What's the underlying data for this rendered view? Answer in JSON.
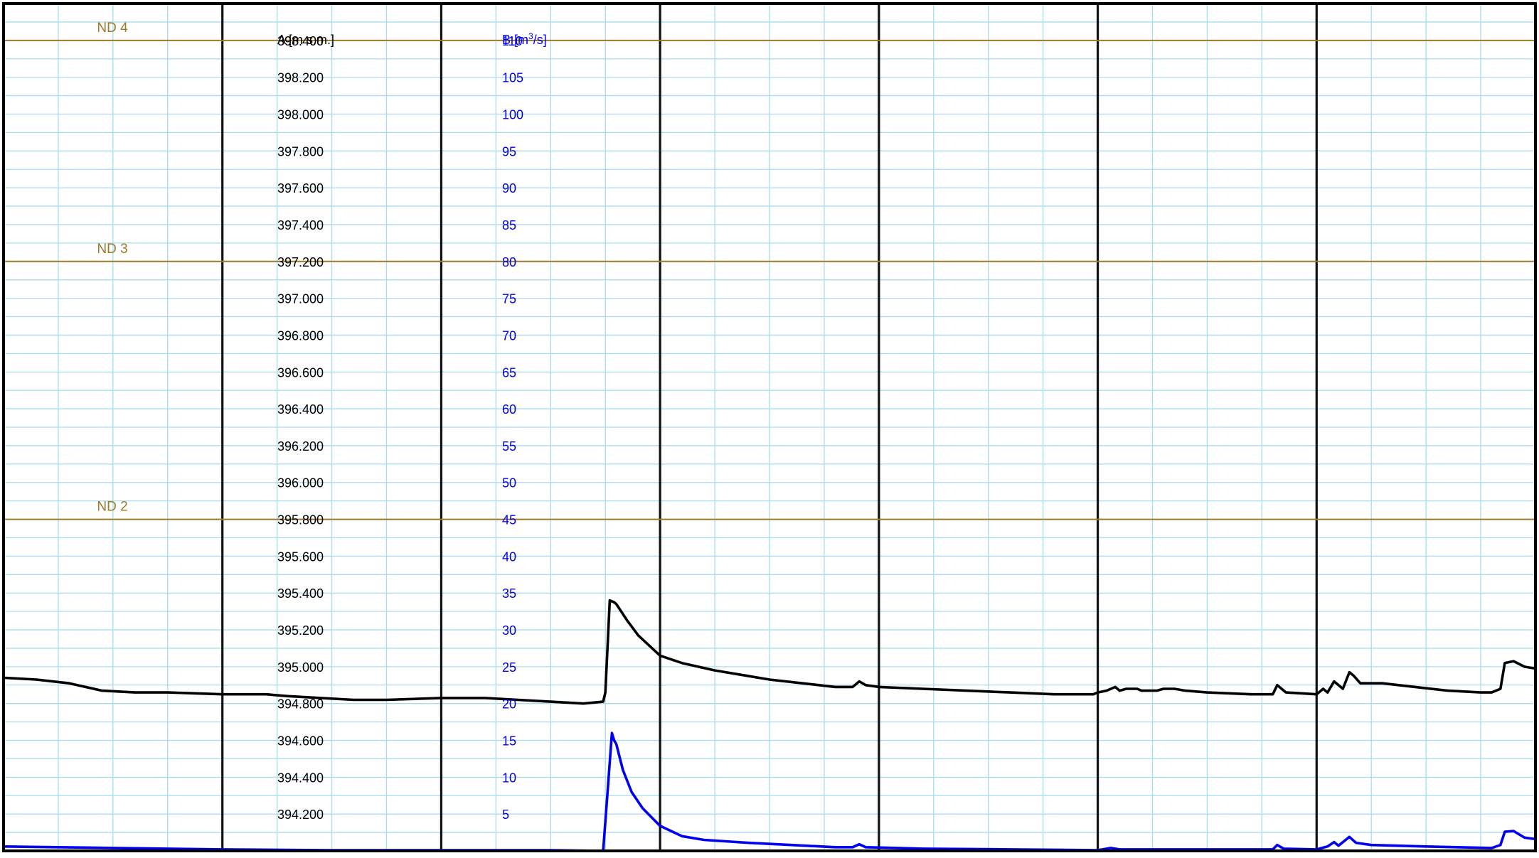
{
  "chart_data": {
    "type": "line",
    "title": "",
    "grid": true,
    "axis_a": {
      "label": "A [m s.m.]",
      "range": [
        394.0,
        398.6
      ],
      "ticks": [
        394.2,
        394.4,
        394.6,
        394.8,
        395.0,
        395.2,
        395.4,
        395.6,
        395.8,
        396.0,
        396.2,
        396.4,
        396.6,
        396.8,
        397.0,
        397.2,
        397.4,
        397.6,
        397.8,
        398.0,
        398.2,
        398.4
      ],
      "tick_labels": [
        "394.200",
        "394.400",
        "394.600",
        "394.800",
        "395.000",
        "395.200",
        "395.400",
        "395.600",
        "395.800",
        "396.000",
        "396.200",
        "396.400",
        "396.600",
        "396.800",
        "397.000",
        "397.200",
        "397.400",
        "397.600",
        "397.800",
        "398.000",
        "398.200",
        "398.400"
      ],
      "color": "#000000"
    },
    "axis_b": {
      "label_prefix": "B [m",
      "label_sup": "3",
      "label_suffix": "/s]",
      "range": [
        0,
        115
      ],
      "ticks": [
        5,
        10,
        15,
        20,
        25,
        30,
        35,
        40,
        45,
        50,
        55,
        60,
        65,
        70,
        75,
        80,
        85,
        90,
        95,
        100,
        105,
        110
      ],
      "tick_labels": [
        "5",
        "10",
        "15",
        "20",
        "25",
        "30",
        "35",
        "40",
        "45",
        "50",
        "55",
        "60",
        "65",
        "70",
        "75",
        "80",
        "85",
        "90",
        "95",
        "100",
        "105",
        "110"
      ],
      "color": "#0000ee"
    },
    "x": {
      "range": [
        0,
        7
      ],
      "major_divisions": 7,
      "minor_per_major": 4
    },
    "threshold_lines": [
      {
        "label": "ND 4",
        "value_a": 398.4
      },
      {
        "label": "ND 3",
        "value_a": 397.2
      },
      {
        "label": "ND 2",
        "value_a": 395.8
      }
    ],
    "threshold_color": "#9c7a2a",
    "series": [
      {
        "axis": "a",
        "color": "#000000",
        "points": [
          [
            0.0,
            394.94
          ],
          [
            0.15,
            394.93
          ],
          [
            0.3,
            394.91
          ],
          [
            0.45,
            394.87
          ],
          [
            0.6,
            394.86
          ],
          [
            0.75,
            394.86
          ],
          [
            1.0,
            394.85
          ],
          [
            1.2,
            394.85
          ],
          [
            1.3,
            394.84
          ],
          [
            1.45,
            394.83
          ],
          [
            1.6,
            394.82
          ],
          [
            1.75,
            394.82
          ],
          [
            2.0,
            394.83
          ],
          [
            2.2,
            394.83
          ],
          [
            2.35,
            394.82
          ],
          [
            2.5,
            394.81
          ],
          [
            2.65,
            394.8
          ],
          [
            2.74,
            394.81
          ],
          [
            2.75,
            394.86
          ],
          [
            2.77,
            395.36
          ],
          [
            2.79,
            395.35
          ],
          [
            2.8,
            395.34
          ],
          [
            2.85,
            395.25
          ],
          [
            2.9,
            395.17
          ],
          [
            3.0,
            395.06
          ],
          [
            3.1,
            395.02
          ],
          [
            3.25,
            394.98
          ],
          [
            3.4,
            394.95
          ],
          [
            3.5,
            394.93
          ],
          [
            3.65,
            394.91
          ],
          [
            3.8,
            394.89
          ],
          [
            3.88,
            394.89
          ],
          [
            3.91,
            394.92
          ],
          [
            3.94,
            394.9
          ],
          [
            4.0,
            394.89
          ],
          [
            4.2,
            394.88
          ],
          [
            4.4,
            394.87
          ],
          [
            4.6,
            394.86
          ],
          [
            4.8,
            394.85
          ],
          [
            4.98,
            394.85
          ],
          [
            5.0,
            394.86
          ],
          [
            5.04,
            394.87
          ],
          [
            5.08,
            394.89
          ],
          [
            5.1,
            394.87
          ],
          [
            5.13,
            394.88
          ],
          [
            5.18,
            394.88
          ],
          [
            5.2,
            394.87
          ],
          [
            5.27,
            394.87
          ],
          [
            5.3,
            394.88
          ],
          [
            5.35,
            394.88
          ],
          [
            5.4,
            394.87
          ],
          [
            5.5,
            394.86
          ],
          [
            5.7,
            394.85
          ],
          [
            5.8,
            394.85
          ],
          [
            5.82,
            394.9
          ],
          [
            5.84,
            394.88
          ],
          [
            5.86,
            394.86
          ],
          [
            6.0,
            394.85
          ],
          [
            6.03,
            394.88
          ],
          [
            6.05,
            394.86
          ],
          [
            6.08,
            394.92
          ],
          [
            6.1,
            394.9
          ],
          [
            6.12,
            394.88
          ],
          [
            6.15,
            394.97
          ],
          [
            6.17,
            394.95
          ],
          [
            6.2,
            394.91
          ],
          [
            6.3,
            394.91
          ],
          [
            6.45,
            394.89
          ],
          [
            6.6,
            394.87
          ],
          [
            6.75,
            394.86
          ],
          [
            6.8,
            394.86
          ],
          [
            6.84,
            394.88
          ],
          [
            6.86,
            395.02
          ],
          [
            6.9,
            395.03
          ],
          [
            6.95,
            395.0
          ],
          [
            7.0,
            394.99
          ]
        ]
      },
      {
        "axis": "b",
        "color": "#0000ee",
        "points": [
          [
            0.0,
            0.6
          ],
          [
            0.5,
            0.4
          ],
          [
            1.0,
            0.2
          ],
          [
            1.5,
            0.1
          ],
          [
            2.0,
            0.1
          ],
          [
            2.5,
            0.1
          ],
          [
            2.74,
            0.0
          ],
          [
            2.76,
            8.0
          ],
          [
            2.78,
            16.0
          ],
          [
            2.79,
            15.0
          ],
          [
            2.8,
            14.5
          ],
          [
            2.83,
            11.0
          ],
          [
            2.87,
            8.0
          ],
          [
            2.92,
            5.8
          ],
          [
            3.0,
            3.4
          ],
          [
            3.1,
            2.0
          ],
          [
            3.2,
            1.5
          ],
          [
            3.4,
            1.1
          ],
          [
            3.6,
            0.8
          ],
          [
            3.8,
            0.5
          ],
          [
            3.88,
            0.5
          ],
          [
            3.91,
            0.9
          ],
          [
            3.94,
            0.5
          ],
          [
            4.2,
            0.3
          ],
          [
            4.6,
            0.2
          ],
          [
            5.0,
            0.1
          ],
          [
            5.06,
            0.4
          ],
          [
            5.1,
            0.2
          ],
          [
            5.5,
            0.2
          ],
          [
            5.8,
            0.2
          ],
          [
            5.82,
            0.8
          ],
          [
            5.85,
            0.3
          ],
          [
            6.0,
            0.2
          ],
          [
            6.05,
            0.6
          ],
          [
            6.08,
            1.2
          ],
          [
            6.1,
            0.7
          ],
          [
            6.15,
            1.9
          ],
          [
            6.18,
            1.1
          ],
          [
            6.25,
            0.8
          ],
          [
            6.5,
            0.6
          ],
          [
            6.8,
            0.4
          ],
          [
            6.84,
            0.8
          ],
          [
            6.86,
            2.6
          ],
          [
            6.9,
            2.7
          ],
          [
            6.95,
            1.8
          ],
          [
            7.0,
            1.6
          ]
        ]
      }
    ]
  }
}
